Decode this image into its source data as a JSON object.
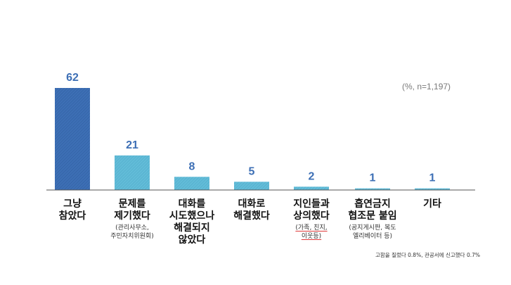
{
  "chart_data": {
    "type": "bar",
    "categories": [
      {
        "label": "그냥\n참았다",
        "sub": ""
      },
      {
        "label": "문제를\n제기했다",
        "sub": "(관리사무소,\n주민자치위원회)"
      },
      {
        "label": "대화를\n시도했으나\n해결되지\n않았다",
        "sub": ""
      },
      {
        "label": "대화로\n해결했다",
        "sub": ""
      },
      {
        "label": "지인들과\n상의했다",
        "sub": "(가족, 친지,\n이웃등)"
      },
      {
        "label": "흡연금지\n협조문 붙임",
        "sub": "(공지게시판, 복도\n엘리베이터 등)"
      },
      {
        "label": "기타",
        "sub": ""
      }
    ],
    "values": [
      62,
      21,
      8,
      5,
      2,
      1,
      1
    ],
    "value_labels": [
      "62",
      "21",
      "8",
      "5",
      "2",
      "1",
      "1"
    ],
    "ylim": [
      0,
      62
    ],
    "note": "(%, n=1,197)",
    "footnote": "고함을 질렀다 0.8%, 관공서에 신고했다 0.7%",
    "colors": {
      "highlight_bar": "#3d6fb5",
      "bar": "#62bcd8",
      "value_label": "#3d6fb5",
      "baseline": "#555555"
    }
  }
}
